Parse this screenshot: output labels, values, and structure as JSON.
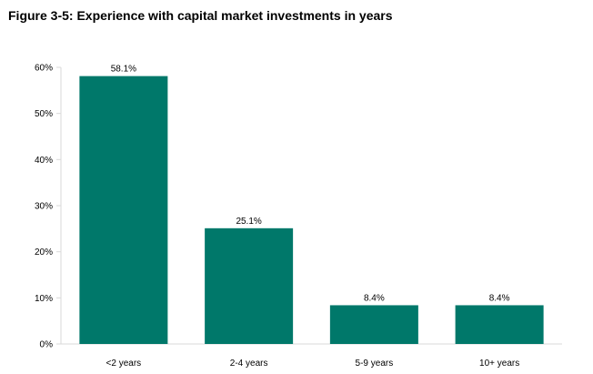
{
  "figure": {
    "title": "Figure 3-5: Experience with capital market investments in years"
  },
  "chart_data": {
    "type": "bar",
    "title": "Figure 3-5: Experience with capital market investments in years",
    "xlabel": "",
    "ylabel": "",
    "categories": [
      "<2 years",
      "2-4 years",
      "5-9 years",
      "10+ years"
    ],
    "values": [
      58.1,
      25.1,
      8.4,
      8.4
    ],
    "value_labels": [
      "58.1%",
      "25.1%",
      "8.4%",
      "8.4%"
    ],
    "ylim": [
      0,
      60
    ],
    "y_ticks": [
      0,
      10,
      20,
      30,
      40,
      50,
      60
    ],
    "y_tick_labels": [
      "0%",
      "10%",
      "20%",
      "30%",
      "40%",
      "50%",
      "60%"
    ],
    "grid": false,
    "legend": "none",
    "bar_color": "#00786A",
    "axis_color": "#D9D9D9"
  }
}
